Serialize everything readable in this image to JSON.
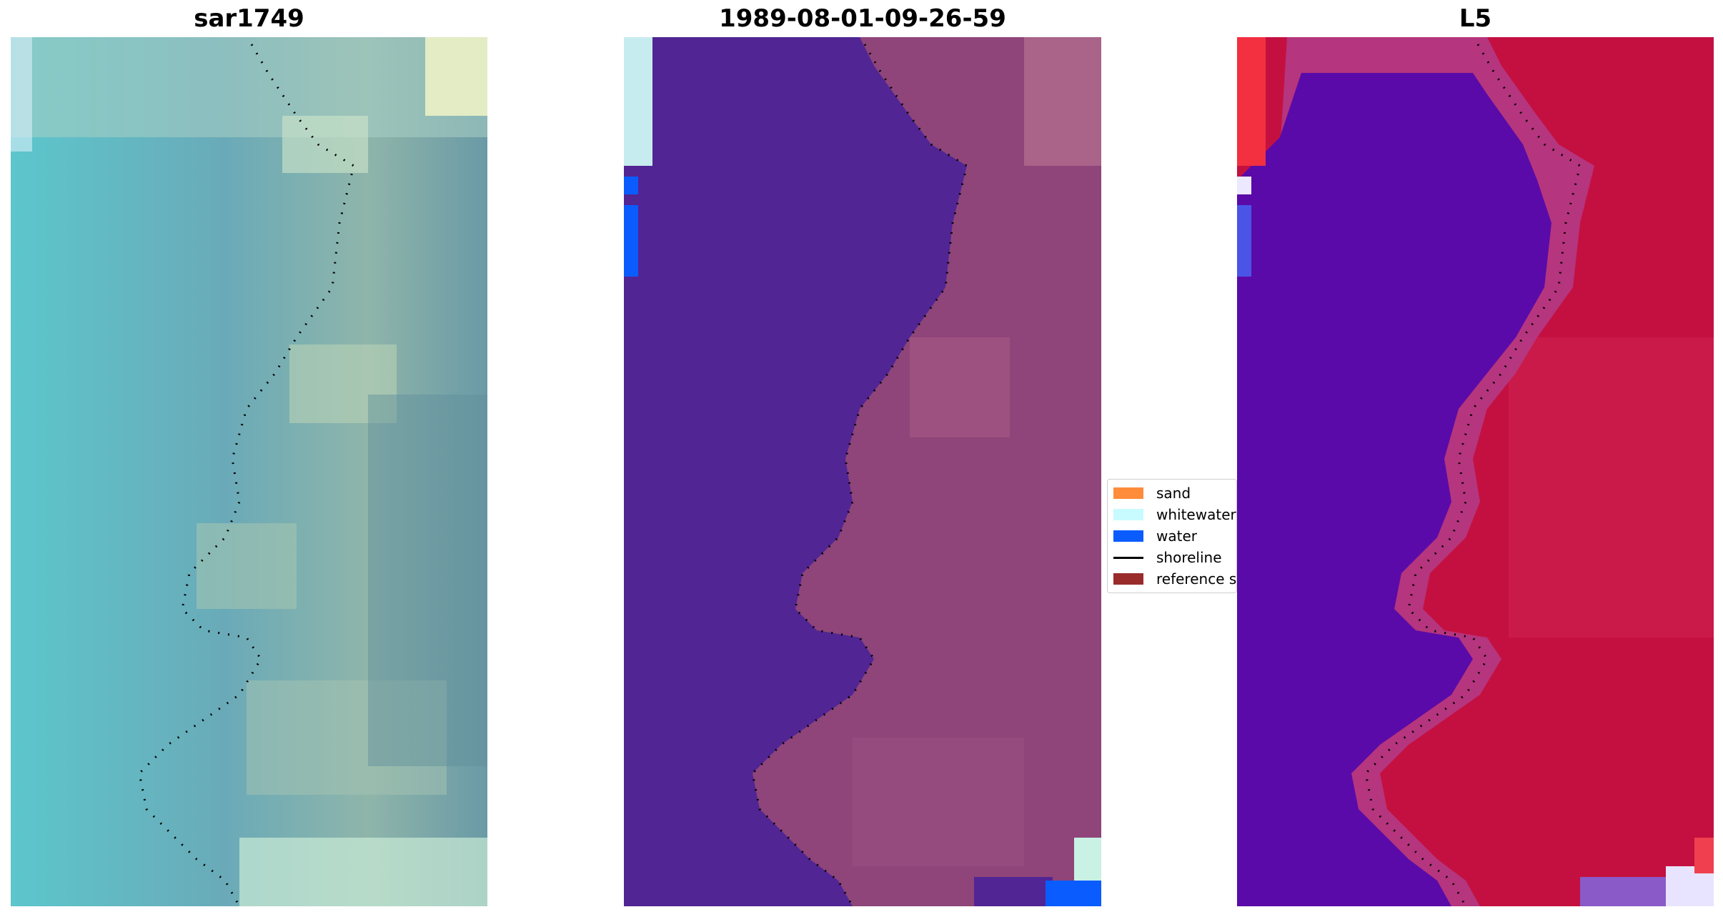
{
  "panels": [
    {
      "id": "p1",
      "title": "sar1749"
    },
    {
      "id": "p2",
      "title": "1989-08-01-09-26-59"
    },
    {
      "id": "p3",
      "title": "L5"
    }
  ],
  "legend": {
    "items": [
      {
        "label": "sand",
        "color": "#ff8c3a",
        "kind": "patch"
      },
      {
        "label": "whitewater",
        "color": "#c8fbff",
        "kind": "patch"
      },
      {
        "label": "water",
        "color": "#0a5cff",
        "kind": "patch"
      },
      {
        "label": "shoreline",
        "color": "#000000",
        "kind": "line"
      },
      {
        "label": "reference shoreline",
        "color": "#992b2b",
        "kind": "patch"
      }
    ]
  },
  "colors": {
    "rgb_water": "#5fb0b8",
    "rgb_land": "#8fb3aa",
    "class_water": "#512594",
    "class_land": "#8f4579",
    "mndwi_water": "#5a0aa8",
    "mndwi_land": "#c41040",
    "shoreline_dots": "#000000"
  },
  "icons": {
    "legend_line": "line-swatch"
  }
}
